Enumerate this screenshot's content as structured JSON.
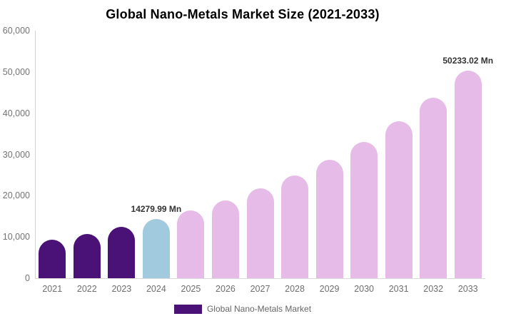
{
  "title": "Global Nano-Metals Market Size (2021-2033)",
  "legend": {
    "label": "Global Nano-Metals Market",
    "swatch_color": "#4A1277"
  },
  "colors": {
    "historical_bar": "#4A1277",
    "base_year_bar": "#A2CADF",
    "forecast_bar": "#E6BBE8",
    "axis_line": "#d4d4d4",
    "tick_text": "#737373",
    "annotation_text": "#333333",
    "background": "#ffffff"
  },
  "chart_data": {
    "type": "bar",
    "title": "Global Nano-Metals Market Size (2021-2033)",
    "xlabel": "",
    "ylabel": "",
    "categories": [
      "2021",
      "2022",
      "2023",
      "2024",
      "2025",
      "2026",
      "2027",
      "2028",
      "2029",
      "2030",
      "2031",
      "2032",
      "2033"
    ],
    "series": [
      {
        "name": "Global Nano-Metals Market",
        "values": [
          9389,
          10797,
          12417,
          14279.99,
          16422,
          18886,
          21719,
          24977,
          28723,
          33032,
          37987,
          43685,
          50233.02
        ]
      }
    ],
    "values": [
      9389,
      10797,
      12417,
      14279.99,
      16422,
      18886,
      21719,
      24977,
      28723,
      33032,
      37987,
      43685,
      50233.02
    ],
    "bar_colors": [
      "#4A1277",
      "#4A1277",
      "#4A1277",
      "#A2CADF",
      "#E6BBE8",
      "#E6BBE8",
      "#E6BBE8",
      "#E6BBE8",
      "#E6BBE8",
      "#E6BBE8",
      "#E6BBE8",
      "#E6BBE8",
      "#E6BBE8"
    ],
    "unit": "Mn",
    "ylim": [
      0,
      60000
    ],
    "yticks": [
      "0",
      "10,000",
      "20,000",
      "30,000",
      "40,000",
      "50,000",
      "60,000"
    ],
    "grid": false,
    "legend_position": "bottom",
    "annotations": [
      {
        "index": 3,
        "text": "14279.99 Mn"
      },
      {
        "index": 12,
        "text": "50233.02 Mn"
      }
    ]
  }
}
